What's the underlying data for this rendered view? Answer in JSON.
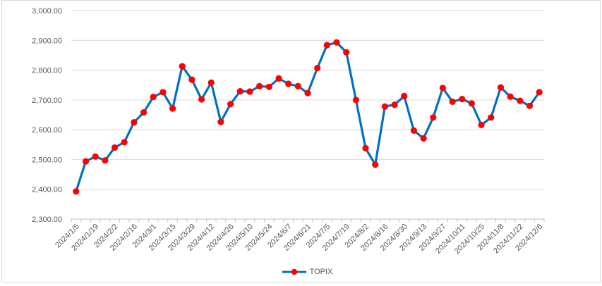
{
  "chart": {
    "legend_label": "TOPIX"
  },
  "style": {
    "line_color": "#0070C0",
    "marker_color": "#FF0000",
    "gridline_color": "#D9D9D9",
    "axis_color": "#BFBFBF",
    "label_color": "#595959",
    "frame_border_color": "#D9D9D9",
    "background": "#FFFFFF"
  },
  "chart_data": {
    "type": "line",
    "title": "",
    "xlabel": "",
    "ylabel": "",
    "ylim": [
      2300,
      3000
    ],
    "grid": "horizontal",
    "legend_position": "bottom-center",
    "x_label_every": 2,
    "x_label_rotation_deg": 45,
    "y_ticks": [
      {
        "value": 3000,
        "label": "3,000.00"
      },
      {
        "value": 2900,
        "label": "2,900.00"
      },
      {
        "value": 2800,
        "label": "2,800.00"
      },
      {
        "value": 2700,
        "label": "2,700.00"
      },
      {
        "value": 2600,
        "label": "2,600.00"
      },
      {
        "value": 2500,
        "label": "2,500.00"
      },
      {
        "value": 2400,
        "label": "2,400.00"
      },
      {
        "value": 2300,
        "label": "2,300.00"
      }
    ],
    "x": [
      "2024/1/5",
      "2024/1/12",
      "2024/1/19",
      "2024/1/26",
      "2024/2/2",
      "2024/2/9",
      "2024/2/16",
      "2024/2/23",
      "2024/3/1",
      "2024/3/8",
      "2024/3/15",
      "2024/3/22",
      "2024/3/29",
      "2024/4/5",
      "2024/4/12",
      "2024/4/19",
      "2024/4/26",
      "2024/5/3",
      "2024/5/10",
      "2024/5/17",
      "2024/5/24",
      "2024/5/31",
      "2024/6/7",
      "2024/6/14",
      "2024/6/21",
      "2024/6/28",
      "2024/7/5",
      "2024/7/12",
      "2024/7/19",
      "2024/7/26",
      "2024/8/2",
      "2024/8/9",
      "2024/8/16",
      "2024/8/23",
      "2024/8/30",
      "2024/9/6",
      "2024/9/13",
      "2024/9/20",
      "2024/9/27",
      "2024/10/4",
      "2024/10/11",
      "2024/10/18",
      "2024/10/25",
      "2024/11/1",
      "2024/11/8",
      "2024/11/15",
      "2024/11/22",
      "2024/11/29",
      "2024/12/6"
    ],
    "series": [
      {
        "name": "TOPIX",
        "marker": "circle",
        "values": [
          2393,
          2494,
          2510,
          2497,
          2540,
          2558,
          2625,
          2658,
          2710,
          2726,
          2671,
          2813,
          2768,
          2702,
          2758,
          2626,
          2686,
          2729,
          2728,
          2746,
          2744,
          2772,
          2754,
          2746,
          2723,
          2807,
          2884,
          2893,
          2860,
          2700,
          2538,
          2483,
          2678,
          2684,
          2713,
          2597,
          2571,
          2641,
          2740,
          2694,
          2703,
          2688,
          2616,
          2641,
          2742,
          2711,
          2697,
          2680,
          2726
        ]
      }
    ]
  }
}
